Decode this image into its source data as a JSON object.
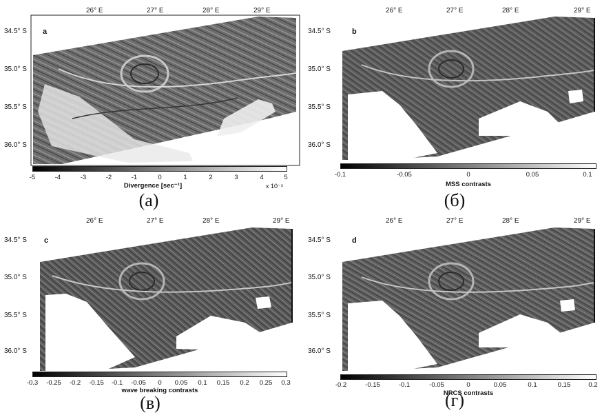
{
  "lon_labels": [
    "26° E",
    "27° E",
    "28° E",
    "29° E"
  ],
  "lat_labels": [
    "34.5° S",
    "35.0° S",
    "35.5° S",
    "36.0° S"
  ],
  "panels": [
    {
      "letter": "a",
      "caption": "(a)",
      "colorbar": {
        "title": "Divergence [sec⁻¹]",
        "ticks": [
          "-5",
          "-4",
          "-3",
          "-2",
          "-1",
          "0",
          "1",
          "2",
          "3",
          "4",
          "5"
        ],
        "multiplier": "x 10⁻⁵"
      }
    },
    {
      "letter": "b",
      "caption": "(б)",
      "colorbar": {
        "title": "MSS contrasts",
        "ticks": [
          "-0.1",
          "-0.05",
          "0",
          "0.05",
          "0.1"
        ]
      }
    },
    {
      "letter": "c",
      "caption": "(в)",
      "colorbar": {
        "title": "wave breaking contrasts",
        "ticks": [
          "-0.3",
          "-0.25",
          "-0.2",
          "-0.15",
          "-0.1",
          "-0.05",
          "0",
          "0.05",
          "0.1",
          "0.15",
          "0.2",
          "0.25",
          "0.3"
        ]
      }
    },
    {
      "letter": "d",
      "caption": "(г)",
      "colorbar": {
        "title": "NRCS contrasts",
        "ticks": [
          "-0.2",
          "-0.15",
          "-0.1",
          "-0.05",
          "0",
          "0.05",
          "0.1",
          "0.15",
          "0.2"
        ]
      }
    }
  ]
}
